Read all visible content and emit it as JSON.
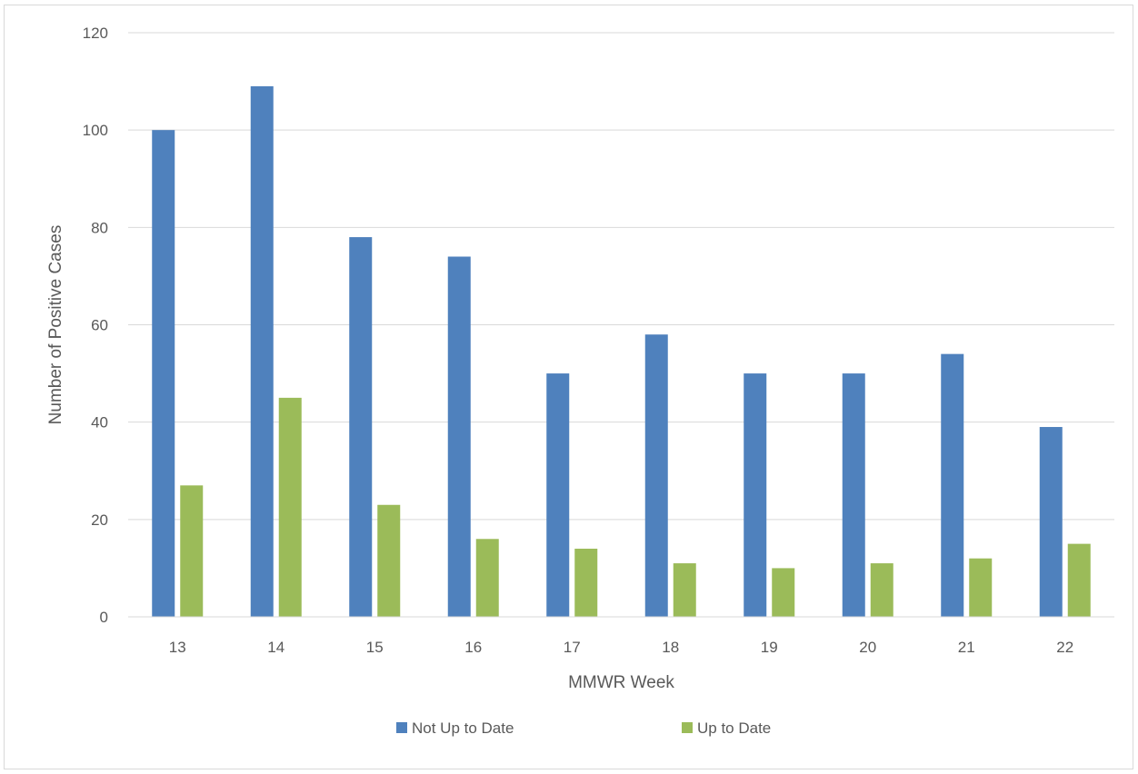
{
  "chart_data": {
    "type": "bar",
    "title": "",
    "xlabel": "MMWR Week",
    "ylabel": "Number of Positive Cases",
    "categories": [
      "13",
      "14",
      "15",
      "16",
      "17",
      "18",
      "19",
      "20",
      "21",
      "22"
    ],
    "series": [
      {
        "name": "Not Up to Date",
        "color": "#4f81bd",
        "values": [
          100,
          109,
          78,
          74,
          50,
          58,
          50,
          50,
          54,
          39
        ]
      },
      {
        "name": "Up to Date",
        "color": "#9bbb59",
        "values": [
          27,
          45,
          23,
          16,
          14,
          11,
          10,
          11,
          12,
          15
        ]
      }
    ],
    "ylim": [
      0,
      120
    ],
    "yticks": [
      0,
      20,
      40,
      60,
      80,
      100,
      120
    ],
    "grid": true,
    "legend": "bottom"
  }
}
